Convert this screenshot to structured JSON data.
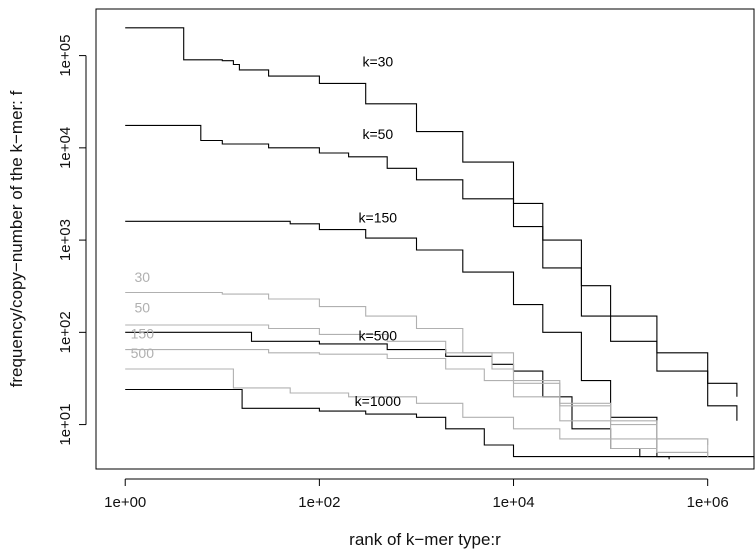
{
  "chart_data": {
    "type": "line",
    "title": "",
    "xlabel": "rank of k−mer type:r",
    "ylabel": "frequency/copy−number of the k−mer: f",
    "xscale": "log",
    "yscale": "log",
    "xlim": [
      0.5,
      3000000
    ],
    "ylim": [
      3.3,
      320000
    ],
    "xticks": [
      {
        "value": 1,
        "label": "1e+00"
      },
      {
        "value": 100,
        "label": "1e+02"
      },
      {
        "value": 10000,
        "label": "1e+04"
      },
      {
        "value": 1000000,
        "label": "1e+06"
      }
    ],
    "yticks": [
      {
        "value": 10,
        "label": "1e+01"
      },
      {
        "value": 100,
        "label": "1e+02"
      },
      {
        "value": 1000,
        "label": "1e+03"
      },
      {
        "value": 10000,
        "label": "1e+04"
      },
      {
        "value": 100000,
        "label": "1e+05"
      }
    ],
    "grid": false,
    "legend": "none",
    "series": [
      {
        "name": "k=30",
        "color": "#000000",
        "label_at": [
          400,
          76000
        ],
        "points": [
          [
            1,
            200000
          ],
          [
            3,
            200000
          ],
          [
            4,
            90000
          ],
          [
            10,
            88000
          ],
          [
            13,
            80000
          ],
          [
            15,
            70000
          ],
          [
            30,
            60000
          ],
          [
            100,
            50000
          ],
          [
            300,
            30000
          ],
          [
            1000,
            15000
          ],
          [
            3000,
            7000
          ],
          [
            10000,
            2500
          ],
          [
            20000,
            1000
          ],
          [
            50000,
            320
          ],
          [
            100000,
            150
          ],
          [
            300000,
            60
          ],
          [
            1000000,
            28
          ],
          [
            2000000,
            20
          ]
        ]
      },
      {
        "name": "k=50",
        "color": "#000000",
        "label_at": [
          400,
          12500
        ],
        "points": [
          [
            1,
            17500
          ],
          [
            5,
            17500
          ],
          [
            6,
            12000
          ],
          [
            10,
            11000
          ],
          [
            30,
            10000
          ],
          [
            100,
            8800
          ],
          [
            200,
            8000
          ],
          [
            500,
            6000
          ],
          [
            1000,
            4500
          ],
          [
            3000,
            2800
          ],
          [
            10000,
            1400
          ],
          [
            20000,
            500
          ],
          [
            50000,
            150
          ],
          [
            100000,
            80
          ],
          [
            300000,
            38
          ],
          [
            1000000,
            16
          ],
          [
            2000000,
            11
          ]
        ]
      },
      {
        "name": "k=150",
        "color": "#000000",
        "label_at": [
          400,
          1550
        ],
        "points": [
          [
            1,
            1600
          ],
          [
            10,
            1600
          ],
          [
            50,
            1500
          ],
          [
            100,
            1300
          ],
          [
            300,
            1050
          ],
          [
            1000,
            780
          ],
          [
            3000,
            450
          ],
          [
            10000,
            200
          ],
          [
            20000,
            100
          ],
          [
            50000,
            30
          ],
          [
            100000,
            12
          ],
          [
            300000,
            4.5
          ],
          [
            3000000,
            4.5
          ]
        ]
      },
      {
        "name": "k=500",
        "color": "#000000",
        "label_at": [
          400,
          95000,
          "skip"
        ],
        "points": [
          [
            1,
            100
          ],
          [
            10,
            100
          ],
          [
            20,
            80
          ],
          [
            100,
            75
          ],
          [
            500,
            65
          ],
          [
            2000,
            55
          ],
          [
            6000,
            45
          ],
          [
            10000,
            38
          ],
          [
            20000,
            20
          ],
          [
            40000,
            9
          ],
          [
            100000,
            5.5
          ],
          [
            200000,
            4.5
          ],
          [
            400000,
            4.2
          ]
        ]
      },
      {
        "name": "k=1000",
        "color": "#000000",
        "points": [
          [
            1,
            24
          ],
          [
            14,
            24
          ],
          [
            16,
            15
          ],
          [
            100,
            14
          ],
          [
            300,
            13
          ],
          [
            1000,
            12
          ],
          [
            2000,
            9
          ],
          [
            5000,
            6
          ],
          [
            10000,
            4.5
          ],
          [
            100000,
            4.5
          ],
          [
            3000000,
            4.2
          ]
        ]
      },
      {
        "name": "30",
        "color": "#b0b0b0",
        "points": [
          [
            1,
            270
          ],
          [
            10,
            260
          ],
          [
            30,
            230
          ],
          [
            100,
            190
          ],
          [
            300,
            150
          ],
          [
            1000,
            110
          ],
          [
            3000,
            60
          ],
          [
            10000,
            30
          ],
          [
            30000,
            17
          ],
          [
            100000,
            11
          ],
          [
            300000,
            7
          ],
          [
            1000000,
            6
          ]
        ]
      },
      {
        "name": "50",
        "color": "#b0b0b0",
        "points": [
          [
            1,
            120
          ],
          [
            10,
            120
          ],
          [
            30,
            110
          ],
          [
            100,
            95
          ],
          [
            500,
            80
          ],
          [
            2000,
            60
          ],
          [
            6000,
            40
          ],
          [
            10000,
            28
          ],
          [
            30000,
            16
          ],
          [
            100000,
            10
          ],
          [
            300000,
            7
          ],
          [
            1000000,
            5
          ]
        ]
      },
      {
        "name": "150",
        "color": "#b0b0b0",
        "points": [
          [
            1,
            65
          ],
          [
            10,
            65
          ],
          [
            30,
            60
          ],
          [
            100,
            58
          ],
          [
            500,
            52
          ],
          [
            2000,
            40
          ],
          [
            5000,
            30
          ],
          [
            10000,
            20
          ],
          [
            30000,
            11
          ],
          [
            100000,
            7
          ],
          [
            300000,
            5
          ],
          [
            1000000,
            4.5
          ]
        ]
      },
      {
        "name": "500",
        "color": "#b0b0b0",
        "points": [
          [
            1,
            40
          ],
          [
            12,
            40
          ],
          [
            13,
            25
          ],
          [
            50,
            22
          ],
          [
            200,
            20
          ],
          [
            1000,
            17
          ],
          [
            3000,
            12
          ],
          [
            10000,
            9
          ],
          [
            30000,
            7
          ],
          [
            100000,
            5.5
          ],
          [
            300000,
            5
          ],
          [
            1000000,
            4.5
          ]
        ]
      }
    ]
  }
}
